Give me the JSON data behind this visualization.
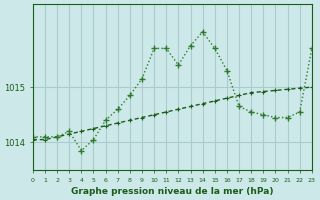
{
  "title": "Graphe pression niveau de la mer (hPa)",
  "background_color": "#cce8e8",
  "grid_color": "#aacccc",
  "line_color_light": "#2d7a2d",
  "line_color_dark": "#1a5c1a",
  "xlim": [
    0,
    23
  ],
  "ylim": [
    1013.5,
    1016.5
  ],
  "yticks": [
    1014,
    1015
  ],
  "xticks": [
    0,
    1,
    2,
    3,
    4,
    5,
    6,
    7,
    8,
    9,
    10,
    11,
    12,
    13,
    14,
    15,
    16,
    17,
    18,
    19,
    20,
    21,
    22,
    23
  ],
  "hours": [
    0,
    1,
    2,
    3,
    4,
    5,
    6,
    7,
    8,
    9,
    10,
    11,
    12,
    13,
    14,
    15,
    16,
    17,
    18,
    19,
    20,
    21,
    22,
    23
  ],
  "series1": [
    1014.1,
    1014.1,
    1014.1,
    1014.2,
    1013.85,
    1014.05,
    1014.4,
    1014.6,
    1014.85,
    1015.15,
    1015.7,
    1015.7,
    1015.4,
    1015.75,
    1016.0,
    1015.7,
    1015.3,
    1014.65,
    1014.55,
    1014.5,
    1014.45,
    1014.45,
    1014.55,
    1015.7
  ],
  "series2": [
    1014.05,
    1014.05,
    1014.1,
    1014.15,
    1014.2,
    1014.25,
    1014.3,
    1014.35,
    1014.4,
    1014.45,
    1014.5,
    1014.55,
    1014.6,
    1014.65,
    1014.7,
    1014.75,
    1014.8,
    1014.85,
    1014.9,
    1014.92,
    1014.94,
    1014.96,
    1014.98,
    1015.0
  ]
}
